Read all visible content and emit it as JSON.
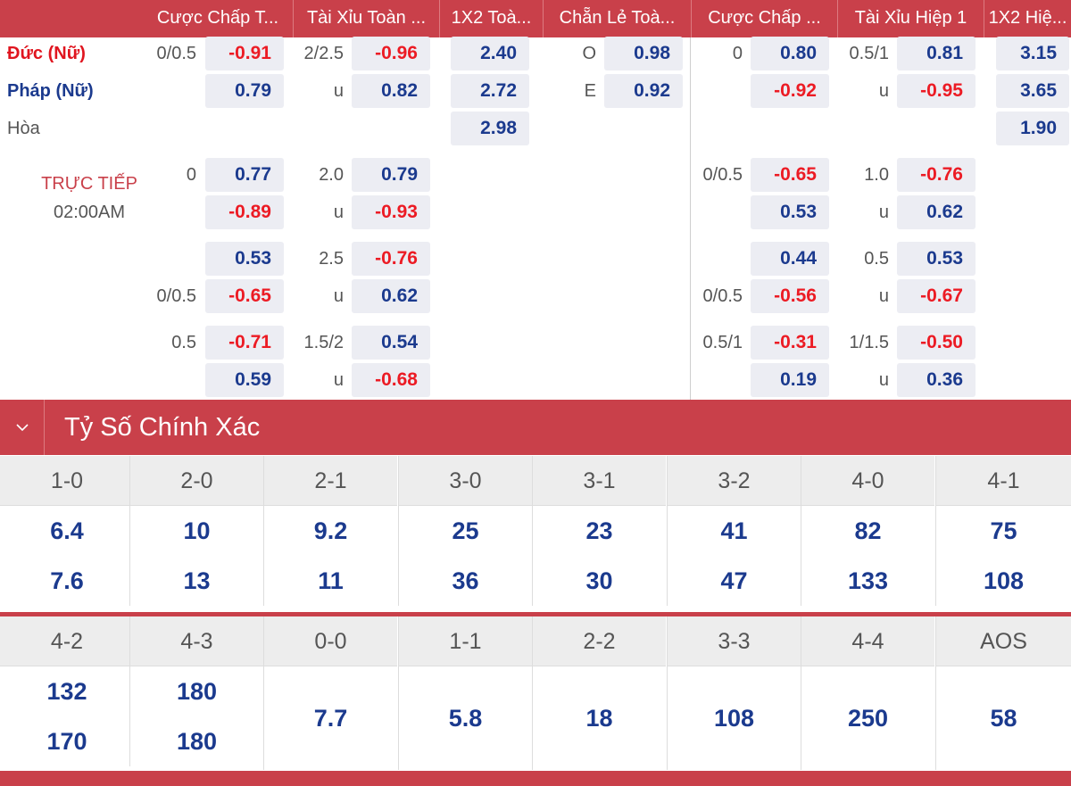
{
  "header": {
    "columns": [
      "Cược Chấp T...",
      "Tài Xỉu Toàn ...",
      "1X2 Toà...",
      "Chẵn Lẻ Toà...",
      "Cược Chấp ...",
      "Tài Xỉu Hiệp 1",
      "1X2 Hiệ..."
    ]
  },
  "match": {
    "home": "Đức (Nữ)",
    "away": "Pháp (Nữ)",
    "draw": "Hòa",
    "status": "TRỰC TIẾP",
    "time": "02:00AM"
  },
  "main": {
    "ft_hdp": {
      "line": "0/0.5",
      "home": "-0.91",
      "away": "0.79"
    },
    "ft_ou": {
      "line": "2/2.5",
      "over": "-0.96",
      "under_label": "u",
      "under": "0.82"
    },
    "ft_1x2": {
      "home": "2.40",
      "away": "2.72",
      "draw": "2.98"
    },
    "ft_oe": {
      "odd_label": "O",
      "odd": "0.98",
      "even_label": "E",
      "even": "0.92"
    },
    "h1_hdp": {
      "line": "0",
      "home": "0.80",
      "away": "-0.92"
    },
    "h1_ou": {
      "line": "0.5/1",
      "over": "0.81",
      "under_label": "u",
      "under": "-0.95"
    },
    "h1_1x2": {
      "home": "3.15",
      "away": "3.65",
      "draw": "1.90"
    }
  },
  "alt": [
    {
      "ft_hdp": {
        "home_line": "0",
        "home": "0.77",
        "away_line": "",
        "away": "-0.89"
      },
      "ft_ou": {
        "line": "2.0",
        "over": "0.79",
        "under_label": "u",
        "under": "-0.93"
      },
      "h1_hdp": {
        "home_line": "0/0.5",
        "home": "-0.65",
        "away_line": "",
        "away": "0.53"
      },
      "h1_ou": {
        "line": "1.0",
        "over": "-0.76",
        "under_label": "u",
        "under": "0.62"
      }
    },
    {
      "ft_hdp": {
        "home_line": "",
        "home": "0.53",
        "away_line": "0/0.5",
        "away": "-0.65"
      },
      "ft_ou": {
        "line": "2.5",
        "over": "-0.76",
        "under_label": "u",
        "under": "0.62"
      },
      "h1_hdp": {
        "home_line": "",
        "home": "0.44",
        "away_line": "0/0.5",
        "away": "-0.56"
      },
      "h1_ou": {
        "line": "0.5",
        "over": "0.53",
        "under_label": "u",
        "under": "-0.67"
      }
    },
    {
      "ft_hdp": {
        "home_line": "0.5",
        "home": "-0.71",
        "away_line": "",
        "away": "0.59"
      },
      "ft_ou": {
        "line": "1.5/2",
        "over": "0.54",
        "under_label": "u",
        "under": "-0.68"
      },
      "h1_hdp": {
        "home_line": "0.5/1",
        "home": "-0.31",
        "away_line": "",
        "away": "0.19"
      },
      "h1_ou": {
        "line": "1/1.5",
        "over": "-0.50",
        "under_label": "u",
        "under": "0.36"
      }
    }
  ],
  "correct_score": {
    "title": "Tỷ Số Chính Xác",
    "row1": [
      {
        "score": "1-0",
        "home": "6.4",
        "away": "7.6"
      },
      {
        "score": "2-0",
        "home": "10",
        "away": "13"
      },
      {
        "score": "2-1",
        "home": "9.2",
        "away": "11"
      },
      {
        "score": "3-0",
        "home": "25",
        "away": "36"
      },
      {
        "score": "3-1",
        "home": "23",
        "away": "30"
      },
      {
        "score": "3-2",
        "home": "41",
        "away": "47"
      },
      {
        "score": "4-0",
        "home": "82",
        "away": "133"
      },
      {
        "score": "4-1",
        "home": "75",
        "away": "108"
      }
    ],
    "row2": [
      {
        "score": "4-2",
        "home": "132",
        "away": "170"
      },
      {
        "score": "4-3",
        "home": "180",
        "away": "180"
      },
      {
        "score": "0-0",
        "single": "7.7"
      },
      {
        "score": "1-1",
        "single": "5.8"
      },
      {
        "score": "2-2",
        "single": "18"
      },
      {
        "score": "3-3",
        "single": "108"
      },
      {
        "score": "4-4",
        "single": "250"
      },
      {
        "score": "AOS",
        "single": "58"
      }
    ]
  },
  "colors": {
    "accent": "#c9404a",
    "positive": "#1b3a8e",
    "negative": "#ec1b24",
    "cell_bg": "#ecedf3"
  }
}
